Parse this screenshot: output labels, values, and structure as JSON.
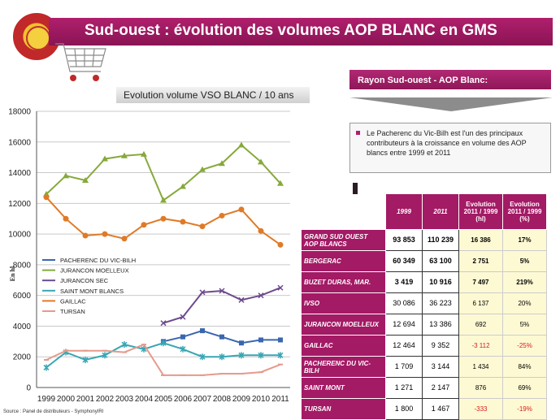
{
  "header": {
    "title": "Sud-ouest : évolution des volumes AOP BLANC  en GMS"
  },
  "subtitle": "Evolution volume VSO BLANC / 10 ans",
  "rayon": "Rayon Sud-ouest - AOP Blanc:",
  "note": "Le Pacherenc du Vic-Bilh est l'un des principaux contributeurs à la croissance en volume des AOP blancs entre 1999 et 2011",
  "source": "Source : Panel de distributeurs - SymphonyIRI",
  "chart_data": {
    "type": "line",
    "ylabel": "En hl",
    "ylim": [
      0,
      18000
    ],
    "yticks": [
      0,
      2000,
      4000,
      6000,
      8000,
      10000,
      12000,
      14000,
      16000,
      18000
    ],
    "x": [
      "1999",
      "2000",
      "2001",
      "2002",
      "2003",
      "2004",
      "2005",
      "2006",
      "2007",
      "2008",
      "2009",
      "2010",
      "2011"
    ],
    "legend_placement": "left-middle",
    "series": [
      {
        "name": "PACHERENC DU VIC-BILH",
        "color": "#3a66b0",
        "values": [
          null,
          null,
          null,
          null,
          null,
          null,
          3000,
          3300,
          3700,
          3300,
          2900,
          3100,
          3100
        ]
      },
      {
        "name": "JURANCON MOELLEUX",
        "color": "#86a93b",
        "values": [
          12600,
          13800,
          13500,
          14900,
          15100,
          15200,
          12200,
          13100,
          14200,
          14600,
          15800,
          14700,
          13300
        ]
      },
      {
        "name": "JURANCON SEC",
        "color": "#6d4a8d",
        "values": [
          null,
          null,
          null,
          null,
          null,
          null,
          4200,
          4600,
          6200,
          6300,
          5700,
          6000,
          6500
        ]
      },
      {
        "name": "SAINT MONT BLANCS",
        "color": "#38a6b4",
        "values": [
          1300,
          2300,
          1800,
          2100,
          2800,
          2500,
          2900,
          2500,
          2000,
          2000,
          2100,
          2100,
          2100
        ]
      },
      {
        "name": "GAILLAC",
        "color": "#e07a27",
        "values": [
          12400,
          11000,
          9900,
          10000,
          9700,
          10600,
          11000,
          10800,
          10500,
          11200,
          11600,
          10200,
          9300
        ]
      },
      {
        "name": "TURSAN",
        "color": "#e59a8c",
        "values": [
          1800,
          2400,
          2400,
          2400,
          2300,
          2800,
          800,
          800,
          800,
          900,
          900,
          1000,
          1500
        ]
      }
    ]
  },
  "table": {
    "headers": [
      "1999",
      "2011",
      "Evolution 2011 / 1999 (hl)",
      "Evolution 2011 / 1999 (%)"
    ],
    "rows": [
      {
        "label": "GRAND SUD OUEST AOP BLANCS",
        "v1999": "93 853",
        "v2011": "110 239",
        "evol_hl": "16 386",
        "evol_pct": "17%",
        "bold": true
      },
      {
        "label": "BERGERAC",
        "v1999": "60 349",
        "v2011": "63 100",
        "evol_hl": "2 751",
        "evol_pct": "5%",
        "bold": true
      },
      {
        "label": "BUZET DURAS, MAR.",
        "v1999": "3 419",
        "v2011": "10 916",
        "evol_hl": "7 497",
        "evol_pct": "219%",
        "bold": true
      },
      {
        "label": "IVSO",
        "v1999": "30 086",
        "v2011": "36 223",
        "evol_hl": "6 137",
        "evol_pct": "20%",
        "bold": false
      },
      {
        "label": "JURANCON MOELLEUX",
        "v1999": "12 694",
        "v2011": "13 386",
        "evol_hl": "692",
        "evol_pct": "5%",
        "bold": false
      },
      {
        "label": "GAILLAC",
        "v1999": "12 464",
        "v2011": "9 352",
        "evol_hl": "-3 112",
        "evol_pct": "-25%",
        "bold": false,
        "neg": true
      },
      {
        "label": "PACHERENC DU VIC-BILH",
        "v1999": "1 709",
        "v2011": "3 144",
        "evol_hl": "1 434",
        "evol_pct": "84%",
        "bold": false
      },
      {
        "label": "SAINT MONT",
        "v1999": "1 271",
        "v2011": "2 147",
        "evol_hl": "876",
        "evol_pct": "69%",
        "bold": false
      },
      {
        "label": "TURSAN",
        "v1999": "1 800",
        "v2011": "1 467",
        "evol_hl": "-333",
        "evol_pct": "-19%",
        "bold": false,
        "neg": true
      }
    ]
  }
}
